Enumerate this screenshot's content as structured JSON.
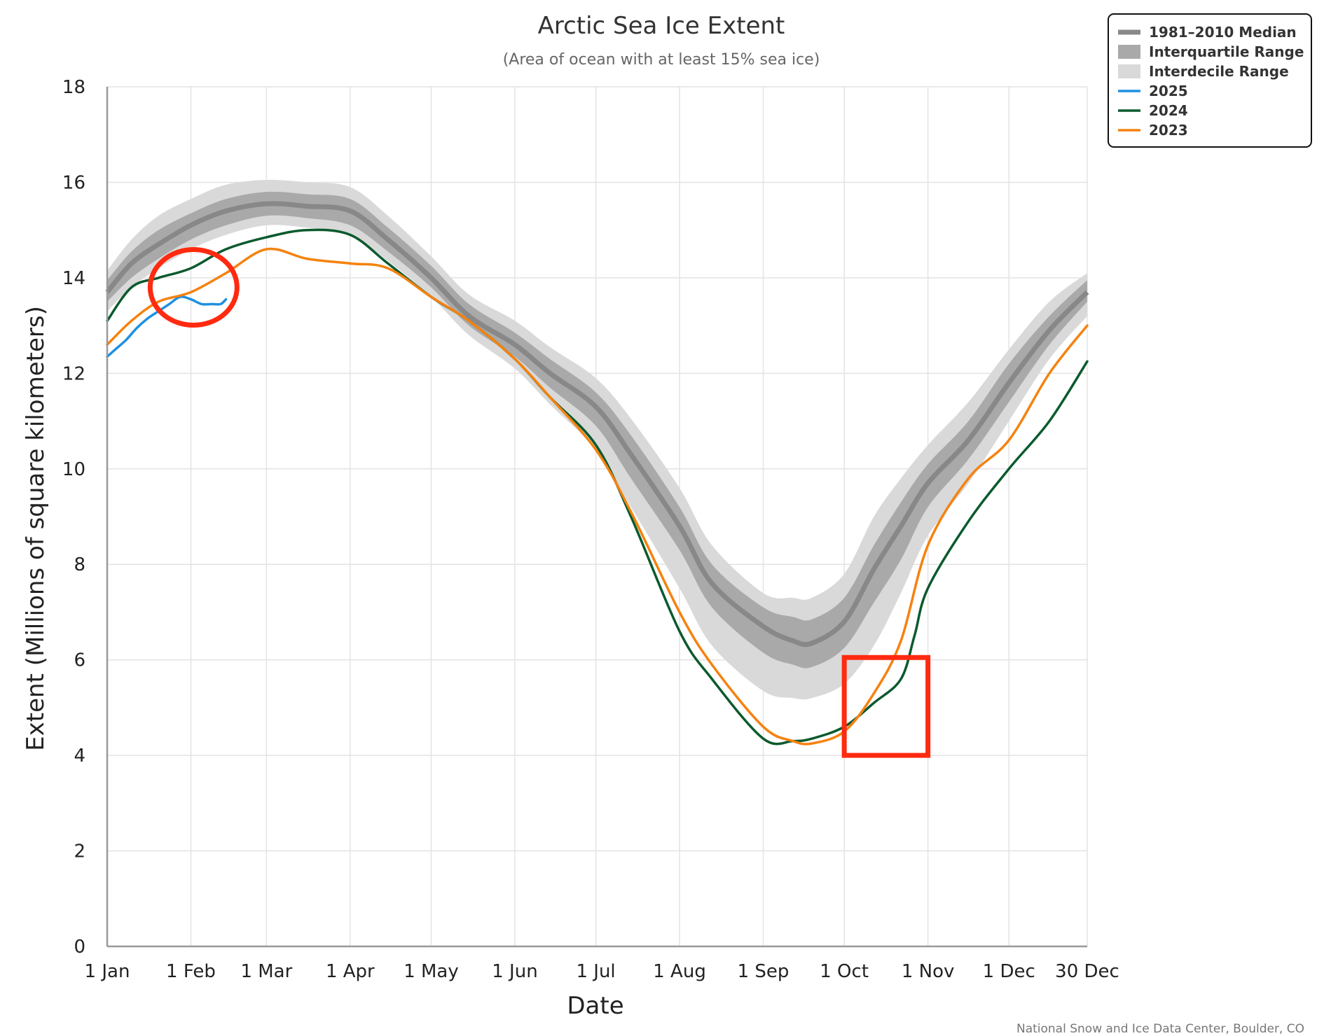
{
  "chart_data": {
    "type": "line",
    "title": "Arctic Sea Ice Extent",
    "subtitle": "(Area of ocean with at least 15% sea ice)",
    "xlabel": "Date",
    "ylabel": "Extent (Millions of square kilometers)",
    "credit": "National Snow and Ice Data Center, Boulder, CO",
    "xlim": [
      1,
      364
    ],
    "ylim": [
      0,
      18
    ],
    "y_ticks": [
      0,
      2,
      4,
      6,
      8,
      10,
      12,
      14,
      16,
      18
    ],
    "x_ticks": [
      {
        "label": "1 Jan",
        "day": 1
      },
      {
        "label": "1 Feb",
        "day": 32
      },
      {
        "label": "1 Mar",
        "day": 60
      },
      {
        "label": "1 Apr",
        "day": 91
      },
      {
        "label": "1 May",
        "day": 121
      },
      {
        "label": "1 Jun",
        "day": 152
      },
      {
        "label": "1 Jul",
        "day": 182
      },
      {
        "label": "1 Aug",
        "day": 213
      },
      {
        "label": "1 Sep",
        "day": 244
      },
      {
        "label": "1 Oct",
        "day": 274
      },
      {
        "label": "1 Nov",
        "day": 305
      },
      {
        "label": "1 Dec",
        "day": 335
      },
      {
        "label": "30 Dec",
        "day": 364
      }
    ],
    "grid": true,
    "legend_position": "top-right",
    "x": [
      1,
      10,
      20,
      32,
      45,
      60,
      75,
      91,
      105,
      121,
      135,
      152,
      165,
      182,
      195,
      213,
      225,
      244,
      255,
      262,
      274,
      285,
      295,
      305,
      320,
      335,
      350,
      364
    ],
    "median": [
      13.7,
      14.3,
      14.7,
      15.1,
      15.4,
      15.55,
      15.5,
      15.4,
      14.8,
      14.0,
      13.2,
      12.6,
      12.0,
      11.3,
      10.3,
      8.8,
      7.6,
      6.7,
      6.4,
      6.35,
      6.8,
      7.9,
      8.8,
      9.7,
      10.6,
      11.8,
      12.9,
      13.7
    ],
    "interquartile": {
      "lower": [
        13.5,
        14.0,
        14.4,
        14.8,
        15.1,
        15.3,
        15.25,
        15.1,
        14.55,
        13.8,
        13.0,
        12.35,
        11.7,
        10.9,
        9.8,
        8.3,
        7.1,
        6.15,
        5.9,
        5.85,
        6.25,
        7.2,
        8.1,
        9.2,
        10.2,
        11.4,
        12.6,
        13.5
      ],
      "upper": [
        13.95,
        14.55,
        15.0,
        15.35,
        15.65,
        15.8,
        15.75,
        15.65,
        15.05,
        14.25,
        13.45,
        12.85,
        12.3,
        11.6,
        10.7,
        9.2,
        8.0,
        7.1,
        6.9,
        6.85,
        7.3,
        8.4,
        9.3,
        10.1,
        11.0,
        12.2,
        13.2,
        13.95
      ]
    },
    "interdecile": {
      "lower": [
        13.3,
        13.8,
        14.2,
        14.6,
        14.9,
        15.1,
        15.05,
        14.9,
        14.35,
        13.6,
        12.8,
        12.1,
        11.35,
        10.4,
        9.2,
        7.5,
        6.3,
        5.35,
        5.2,
        5.2,
        5.5,
        6.3,
        7.4,
        8.6,
        9.7,
        11.0,
        12.3,
        13.2
      ],
      "upper": [
        14.15,
        14.8,
        15.3,
        15.65,
        15.95,
        16.05,
        16.0,
        15.9,
        15.3,
        14.45,
        13.65,
        13.1,
        12.55,
        11.9,
        11.05,
        9.6,
        8.4,
        7.4,
        7.3,
        7.3,
        7.8,
        9.0,
        9.8,
        10.5,
        11.4,
        12.5,
        13.5,
        14.1
      ]
    },
    "series": [
      {
        "name": "1981–2010 Median",
        "color": "#888888"
      },
      {
        "name": "Interquartile Range",
        "color": "#a9a9a9"
      },
      {
        "name": "Interdecile Range",
        "color": "#d9d9d9"
      },
      {
        "name": "2025",
        "color": "#1e90e0",
        "x": [
          1,
          4,
          8,
          12,
          16,
          20,
          24,
          28,
          32,
          36,
          40,
          43,
          45
        ],
        "values": [
          12.35,
          12.5,
          12.7,
          12.95,
          13.15,
          13.3,
          13.45,
          13.6,
          13.55,
          13.45,
          13.45,
          13.45,
          13.55
        ]
      },
      {
        "name": "2024",
        "color": "#0b5a2e",
        "x": [
          1,
          10,
          20,
          32,
          45,
          60,
          75,
          91,
          105,
          121,
          135,
          152,
          165,
          182,
          195,
          213,
          225,
          244,
          255,
          262,
          274,
          285,
          295,
          300,
          305,
          320,
          335,
          350,
          364
        ],
        "values": [
          13.1,
          13.8,
          14.0,
          14.2,
          14.6,
          14.85,
          15.0,
          14.9,
          14.3,
          13.6,
          13.1,
          12.3,
          11.5,
          10.5,
          9.0,
          6.6,
          5.6,
          4.35,
          4.3,
          4.35,
          4.6,
          5.1,
          5.6,
          6.5,
          7.5,
          8.9,
          10.0,
          11.0,
          12.25
        ]
      },
      {
        "name": "2023",
        "color": "#f5820f",
        "x": [
          1,
          10,
          20,
          32,
          45,
          60,
          75,
          91,
          105,
          121,
          135,
          152,
          165,
          182,
          195,
          213,
          225,
          244,
          255,
          262,
          274,
          285,
          295,
          305,
          320,
          335,
          350,
          364
        ],
        "values": [
          12.6,
          13.1,
          13.5,
          13.7,
          14.1,
          14.6,
          14.4,
          14.3,
          14.2,
          13.6,
          13.1,
          12.3,
          11.5,
          10.4,
          9.1,
          7.0,
          5.9,
          4.6,
          4.3,
          4.25,
          4.5,
          5.3,
          6.4,
          8.4,
          9.8,
          10.6,
          12.0,
          13.0
        ]
      }
    ],
    "annotations": [
      {
        "shape": "circle",
        "color": "#ff2a10",
        "center_day": 33,
        "center_value": 13.8
      },
      {
        "shape": "rectangle",
        "color": "#ff2a10",
        "x_range": [
          274,
          305
        ],
        "y_range": [
          4.0,
          6.05
        ]
      }
    ]
  }
}
